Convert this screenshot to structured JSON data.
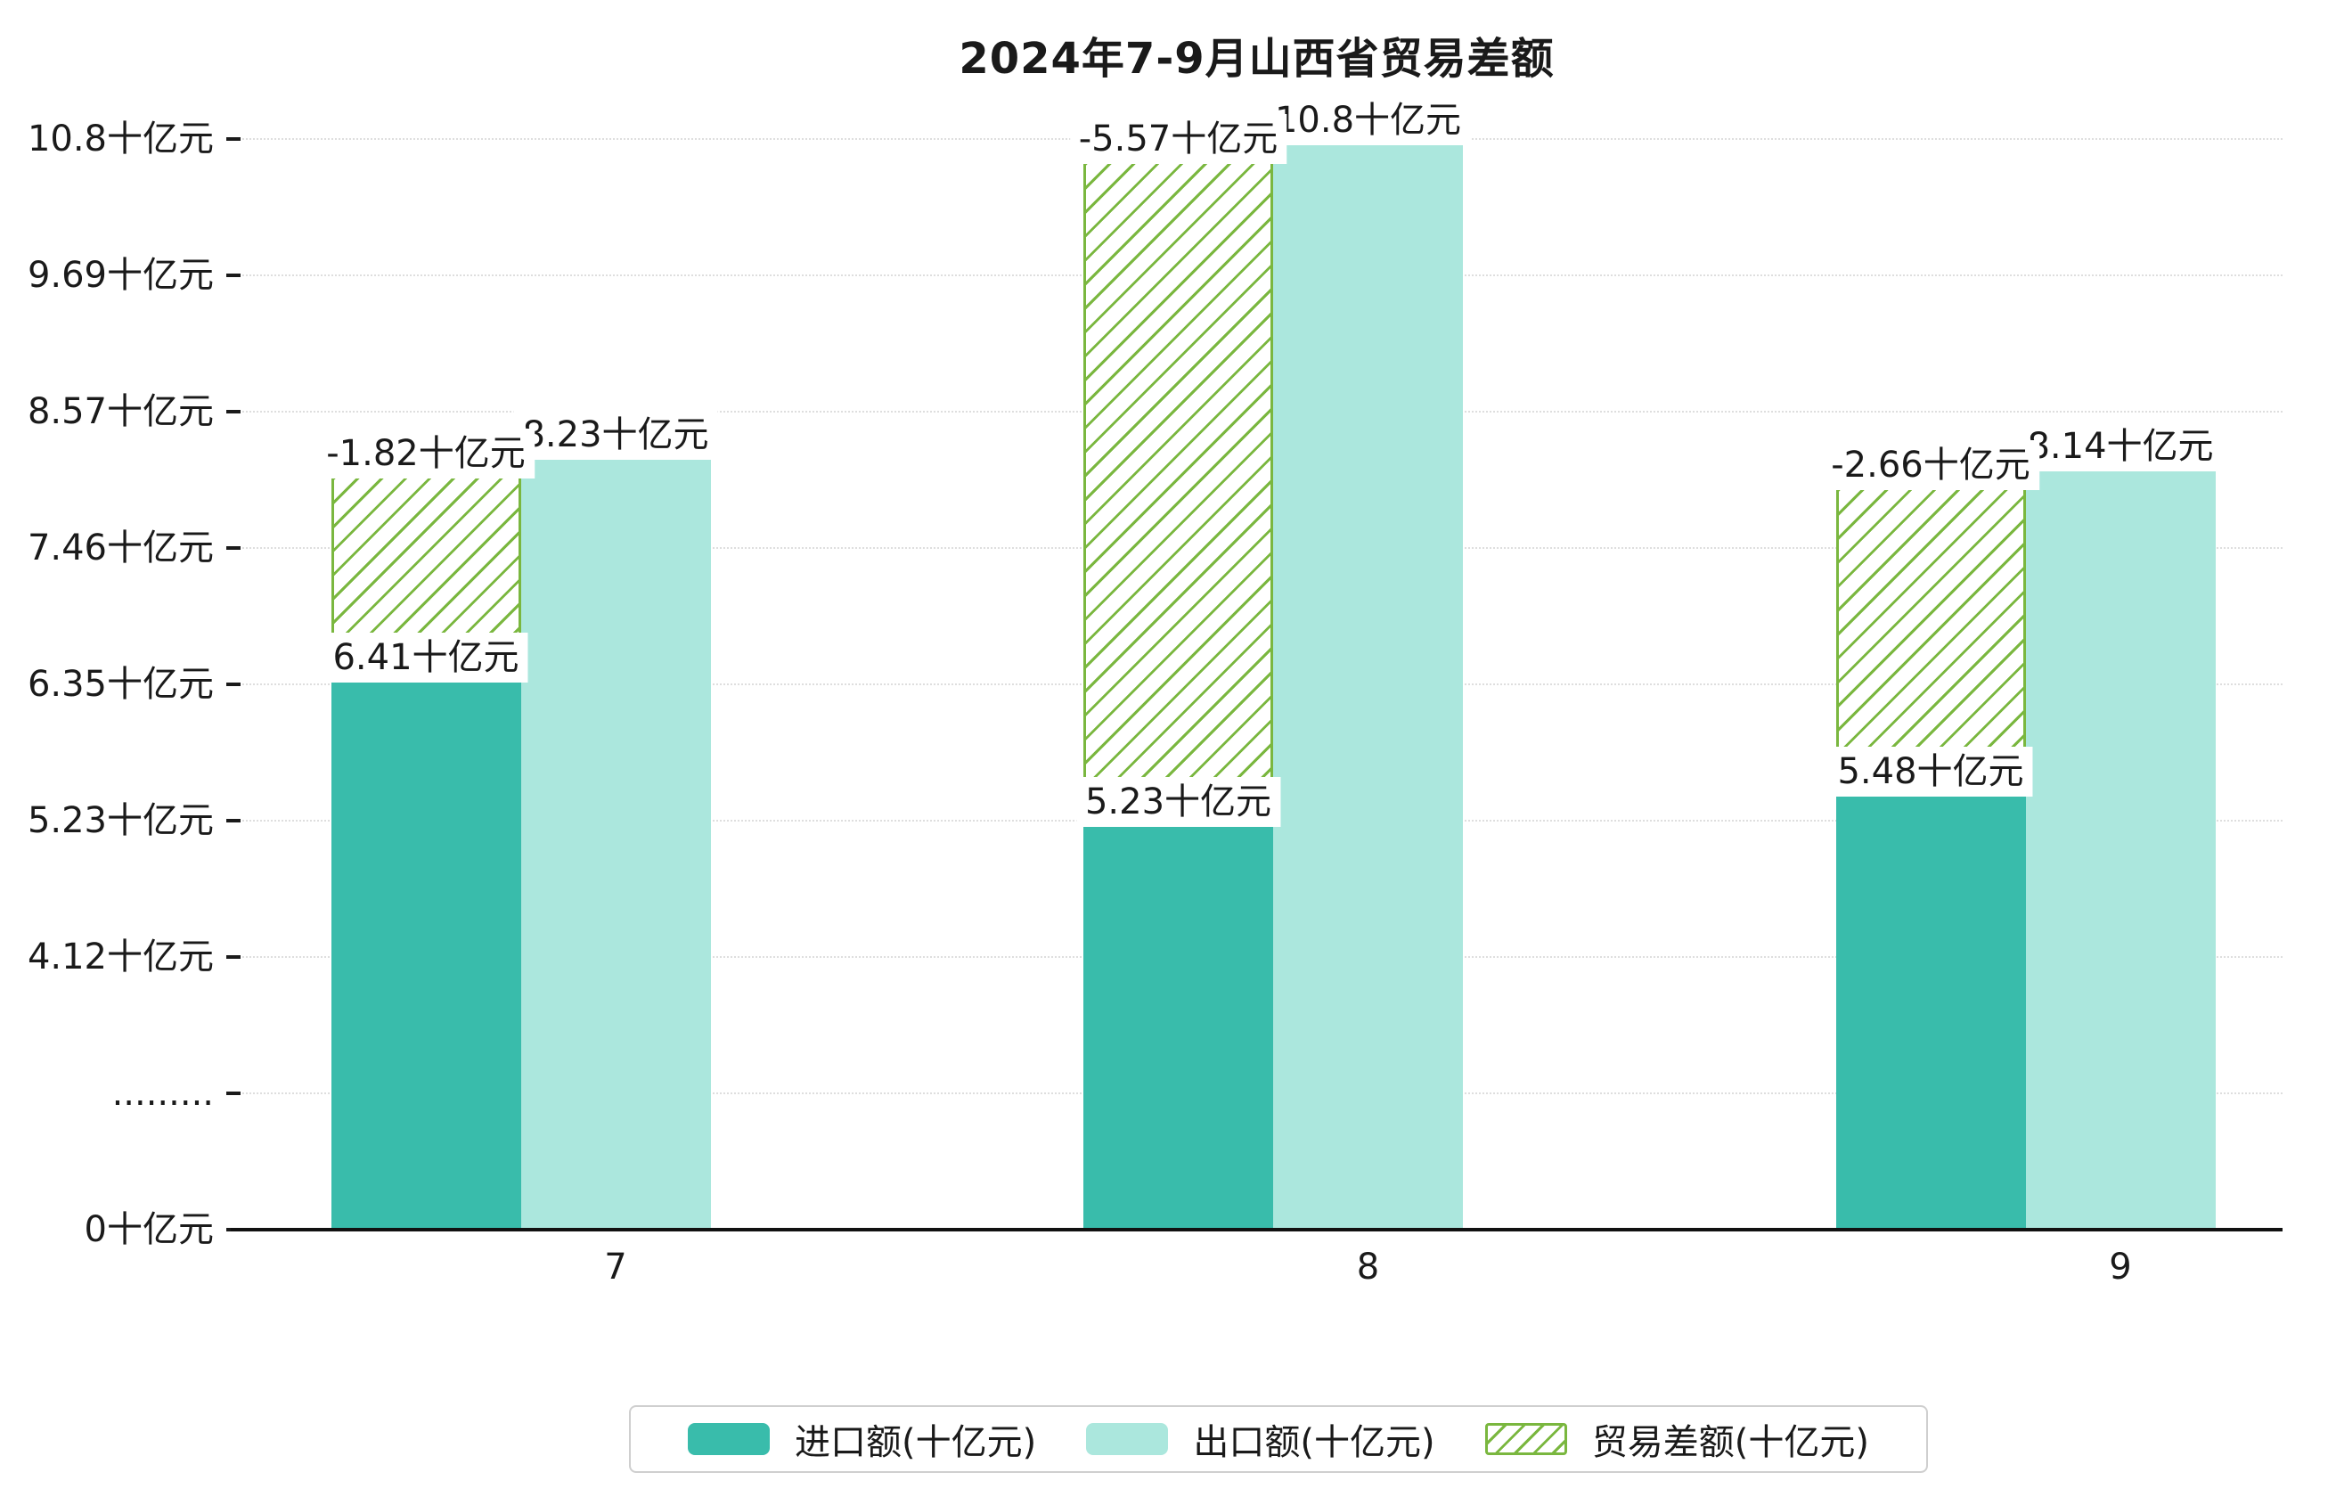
{
  "page": {
    "background": "#ffffff"
  },
  "colors": {
    "import": "#39bcab",
    "export": "#abe7dd",
    "diff": "#7ab73f",
    "text": "#1a1a1a",
    "grid": "#dedede"
  },
  "chart_data": {
    "type": "bar",
    "title": "2024年7-9月山西省贸易差额",
    "categories": [
      "7",
      "8",
      "9"
    ],
    "series": [
      {
        "name": "进口额(十亿元)",
        "type": "bar",
        "values": [
          6.41,
          5.23,
          5.48
        ],
        "labels": [
          "6.41十亿元",
          "5.23十亿元",
          "5.48十亿元"
        ],
        "color": "#39bcab"
      },
      {
        "name": "出口额(十亿元)",
        "type": "bar",
        "values": [
          8.23,
          10.8,
          8.14
        ],
        "labels": [
          "8.23十亿元",
          "10.8十亿元",
          "8.14十亿元"
        ],
        "color": "#abe7dd"
      },
      {
        "name": "贸易差额(十亿元)",
        "type": "floating-bar",
        "values": [
          -1.82,
          -5.57,
          -2.66
        ],
        "labels": [
          "-1.82十亿元",
          "-5.57十亿元",
          "-2.66十亿元"
        ],
        "spans": [
          [
            6.41,
            8.23
          ],
          [
            5.23,
            10.8
          ],
          [
            5.48,
            8.14
          ]
        ],
        "color": "#7ab73f",
        "pattern": "diagonal-hatch"
      }
    ],
    "y_axis": {
      "unit": "十亿元",
      "axis_break": true,
      "ticks": [
        {
          "label": "0十亿元",
          "value": 0
        },
        {
          "label": ".........",
          "value": null
        },
        {
          "label": "4.12十亿元",
          "value": 4.12
        },
        {
          "label": "5.23十亿元",
          "value": 5.23
        },
        {
          "label": "6.35十亿元",
          "value": 6.35
        },
        {
          "label": "7.46十亿元",
          "value": 7.46
        },
        {
          "label": "8.57十亿元",
          "value": 8.57
        },
        {
          "label": "9.69十亿元",
          "value": 9.69
        },
        {
          "label": "10.8十亿元",
          "value": 10.8
        }
      ]
    },
    "x_axis": {
      "ticks": [
        "7",
        "8",
        "9"
      ]
    },
    "grid": {
      "horizontal": true,
      "style": "dotted"
    },
    "legend": {
      "position": "bottom",
      "items": [
        "进口额(十亿元)",
        "出口额(十亿元)",
        "贸易差额(十亿元)"
      ]
    }
  }
}
